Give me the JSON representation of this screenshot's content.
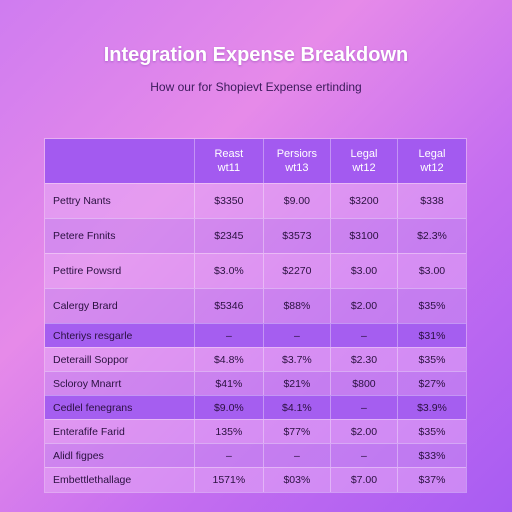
{
  "title": "Integration Expense Breakdown",
  "subtitle": "How our for Shopievt Expense ertinding",
  "colors": {
    "header": "#a35af0",
    "highlight_row": "#a55ef0",
    "title": "#ffffff"
  },
  "table": {
    "headers": [
      {
        "line1": "",
        "line2": ""
      },
      {
        "line1": "Reast",
        "line2": "wt11"
      },
      {
        "line1": "Persiors",
        "line2": "wt13"
      },
      {
        "line1": "Legal",
        "line2": "wt12"
      },
      {
        "line1": "Legal",
        "line2": "wt12"
      }
    ],
    "rows": [
      {
        "cells": [
          "Pettry Nants",
          "$3350",
          "$9.00",
          "$3200",
          "$338"
        ]
      },
      {
        "cells": [
          "Petere Fnnits",
          "$2345",
          "$3573",
          "$3100",
          "$2.3%"
        ]
      },
      {
        "cells": [
          "Pettire Powsrd",
          "$3.0%",
          "$2270",
          "$3.00",
          "$3.00"
        ]
      },
      {
        "cells": [
          "Calergy Brard",
          "$5346",
          "$88%",
          "$2.00",
          "$35%"
        ]
      },
      {
        "cells": [
          "Chteriys resgarle",
          "–",
          "–",
          "–",
          "$31%"
        ]
      },
      {
        "cells": [
          "Deteraill Soppor",
          "$4.8%",
          "$3.7%",
          "$2.30",
          "$35%"
        ]
      },
      {
        "cells": [
          "Scloroy Mnarrt",
          "$41%",
          "$21%",
          "$800",
          "$27%"
        ]
      },
      {
        "cells": [
          "Cedlel fenegrans",
          "$9.0%",
          "$4.1%",
          "–",
          "$3.9%"
        ]
      },
      {
        "cells": [
          "Enterafife Farid",
          "135%",
          "$77%",
          "$2.00",
          "$35%"
        ]
      },
      {
        "cells": [
          "Alidl figpes",
          "–",
          "–",
          "–",
          "$33%"
        ]
      },
      {
        "cells": [
          "Embettlethallage",
          "1571%",
          "$03%",
          "$7.00",
          "$37%"
        ]
      }
    ]
  }
}
